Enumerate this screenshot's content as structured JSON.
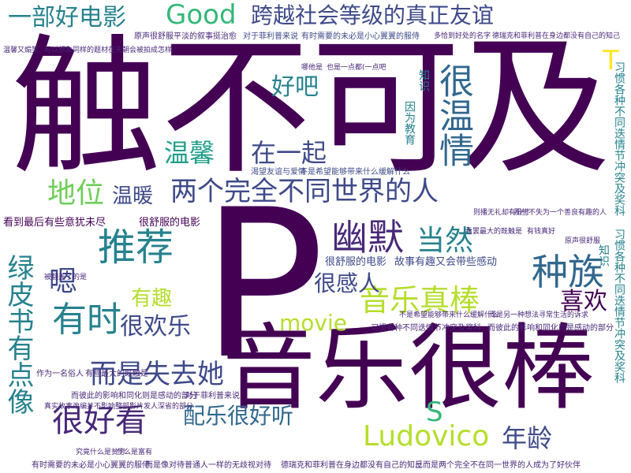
{
  "palette": {
    "deep_purple": "#440154",
    "indigo": "#482878",
    "purple": "#3e4a89",
    "blue": "#31688e",
    "teal": "#26828e",
    "cyan": "#1f9e89",
    "green": "#35b779",
    "lime": "#6ece58",
    "yellow_green": "#b5de2b",
    "yellow": "#fde725"
  },
  "words": {
    "w01": "触不可及",
    "w02": "音乐很棒",
    "w03": "P",
    "w04": "跨越社会等级的真正友谊",
    "w05": "两个完全不同世界的人",
    "w06": "一部好电影",
    "w07": "Good",
    "w08": "很温情",
    "w09": "推荐",
    "w10": "幽默",
    "w11": "种族",
    "w12": "温馨",
    "w13": "在一起",
    "w14": "地位",
    "w15": "温暖",
    "w16": "当然",
    "w17": "好吧",
    "w18": "音乐真棒",
    "w19": "很感人",
    "w20": "喜欢",
    "w21": "有时",
    "w22": "有趣",
    "w23": "movie",
    "w24": "很欢乐",
    "w25": "绿皮书有点像",
    "w26": "嗯",
    "w27": "而是失去她",
    "w28": "很好看",
    "w29": "配乐很好听",
    "w30": "Ludovico",
    "w31": "年龄",
    "w32": "S",
    "w33": "T",
    "w34": "因为教育",
    "w35": "知识",
    "w36": "习惯各种不同迭情节冲突及奖科",
    "w37": "看到最后有些意犹未尽",
    "w38": "很舒服的电影",
    "w39": "很舒服的电影",
    "w40": "故事有趣又会带些感动",
    "w41": "渴望友谊与爱情",
    "w42": "不是希望能够带来什么缓解什么",
    "w43": "对于菲利普来说",
    "w44": "有时需要的未必是小心翼翼的服侍",
    "w45": "原声很舒服",
    "w46": "平淡的叙事挺治愈",
    "w47": "多恰到好处的名字",
    "w48": "德瑞克和菲利普在身边都没有自己的知己",
    "w49": "温馨又煽笑",
    "w50": "可以想象同样的题材在天朝会被拍成怎样",
    "w51": "哪他是",
    "w52": "也是一点都(一点吧",
    "w53": "作为一名俗人",
    "w54": "有些最大的既触是",
    "w55": "而彼此的影响和同化则是感动的部分",
    "w56": "对于菲利普来说",
    "w57": "真实故事改编并不影响整部影片发人深省的部分",
    "w58": "究竟什么是贫穷",
    "w59": "什么是富有",
    "w60": "有时需要的未必是小心翼翼的服侍",
    "w61": "而是像对待普通人一样的无歧视对待",
    "w62": "德瑞克和菲利普在身边都没有自己的知己",
    "w63": "反而是两个完全不在同一世界的人成为了好伙伴",
    "w64": "习惯各种不同迭情节冲突及奖科",
    "w65": "而彼此的影响和同化则是感动的部分",
    "w66": "看罢最大的既触是",
    "w67": "有钱真好",
    "w68": "原声很舒服",
    "w69": "则播无礼却有分寸",
    "w70": "那些不失为一个善良有趣的人",
    "w71": "不是希望能够带来什么缓解什么",
    "w72": "而是另一种想法寻常生活的诉求",
    "w73": "被翻盖了的是",
    "w74": "知识",
    "w75": "习惯各种不同迭情节冲突及奖科"
  }
}
